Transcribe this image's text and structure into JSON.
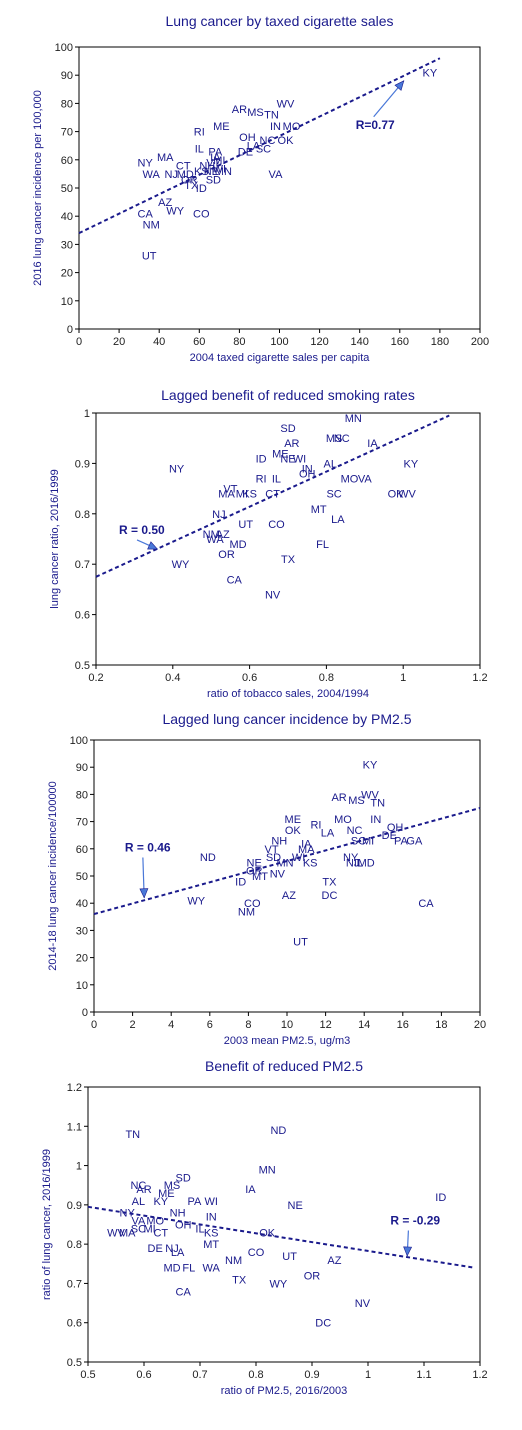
{
  "chart_data": [
    {
      "type": "scatter",
      "title": "Lung cancer by taxed cigarette sales",
      "xlabel": "2004 taxed cigarette sales per capita",
      "ylabel": "2016 lung cancer incidence per 100,000",
      "xlim": [
        0,
        200
      ],
      "ylim": [
        0,
        100
      ],
      "xticks": [
        "0",
        "20",
        "40",
        "60",
        "80",
        "100",
        "120",
        "140",
        "160",
        "180",
        "200"
      ],
      "yticks": [
        "0",
        "10",
        "20",
        "30",
        "40",
        "50",
        "60",
        "70",
        "80",
        "90",
        "100"
      ],
      "grid": false,
      "annotation": {
        "text": "R=0.77",
        "x": 138,
        "y": 71,
        "arrow_to": [
          162,
          88
        ]
      },
      "trendline": [
        [
          0,
          34
        ],
        [
          180,
          96
        ]
      ],
      "points": [
        {
          "label": "KY",
          "x": 175,
          "y": 91
        },
        {
          "label": "WV",
          "x": 103,
          "y": 80
        },
        {
          "label": "AR",
          "x": 80,
          "y": 78
        },
        {
          "label": "MS",
          "x": 88,
          "y": 77
        },
        {
          "label": "TN",
          "x": 96,
          "y": 76
        },
        {
          "label": "IN",
          "x": 98,
          "y": 72
        },
        {
          "label": "MO",
          "x": 106,
          "y": 72
        },
        {
          "label": "ME",
          "x": 71,
          "y": 72
        },
        {
          "label": "RI",
          "x": 60,
          "y": 70
        },
        {
          "label": "OH",
          "x": 84,
          "y": 68
        },
        {
          "label": "NC",
          "x": 94,
          "y": 67
        },
        {
          "label": "OK",
          "x": 103,
          "y": 67
        },
        {
          "label": "LA",
          "x": 87,
          "y": 65
        },
        {
          "label": "SC",
          "x": 92,
          "y": 64
        },
        {
          "label": "DE",
          "x": 83,
          "y": 63
        },
        {
          "label": "IL",
          "x": 60,
          "y": 64
        },
        {
          "label": "PA",
          "x": 68,
          "y": 63
        },
        {
          "label": "IA",
          "x": 68,
          "y": 61
        },
        {
          "label": "MI",
          "x": 70,
          "y": 60
        },
        {
          "label": "VT",
          "x": 67,
          "y": 59
        },
        {
          "label": "MA",
          "x": 43,
          "y": 61
        },
        {
          "label": "NY",
          "x": 33,
          "y": 59
        },
        {
          "label": "CT",
          "x": 52,
          "y": 58
        },
        {
          "label": "NH",
          "x": 64,
          "y": 58
        },
        {
          "label": "WI",
          "x": 70,
          "y": 57
        },
        {
          "label": "KS",
          "x": 61,
          "y": 56
        },
        {
          "label": "NE",
          "x": 66,
          "y": 56
        },
        {
          "label": "MN",
          "x": 72,
          "y": 56
        },
        {
          "label": "WA",
          "x": 36,
          "y": 55
        },
        {
          "label": "NJ",
          "x": 46,
          "y": 55
        },
        {
          "label": "MD",
          "x": 53,
          "y": 55
        },
        {
          "label": "VA",
          "x": 98,
          "y": 55
        },
        {
          "label": "OR",
          "x": 55,
          "y": 53
        },
        {
          "label": "SD",
          "x": 67,
          "y": 53
        },
        {
          "label": "TX",
          "x": 56,
          "y": 51
        },
        {
          "label": "ID",
          "x": 61,
          "y": 50
        },
        {
          "label": "AZ",
          "x": 43,
          "y": 45
        },
        {
          "label": "CA",
          "x": 33,
          "y": 41
        },
        {
          "label": "WY",
          "x": 48,
          "y": 42
        },
        {
          "label": "CO",
          "x": 61,
          "y": 41
        },
        {
          "label": "NM",
          "x": 36,
          "y": 37
        },
        {
          "label": "UT",
          "x": 35,
          "y": 26
        }
      ]
    },
    {
      "type": "scatter",
      "title": "Lagged benefit of reduced smoking rates",
      "xlabel": "ratio of tobacco sales, 2004/1994",
      "ylabel": "lung cancer ratio, 2016/1999",
      "xlim": [
        0.2,
        1.2
      ],
      "ylim": [
        0.5,
        1.0
      ],
      "xticks": [
        "0.2",
        "0.4",
        "0.6",
        "0.8",
        "1",
        "1.2"
      ],
      "yticks": [
        "0.5",
        "0.6",
        "0.7",
        "0.8",
        "0.9",
        "1"
      ],
      "grid": false,
      "annotation": {
        "text": "R = 0.50",
        "x": 0.26,
        "y": 0.76,
        "arrow_to": [
          0.36,
          0.73
        ]
      },
      "trendline": [
        [
          0.2,
          0.675
        ],
        [
          1.12,
          0.995
        ]
      ],
      "points": [
        {
          "label": "MN",
          "x": 0.87,
          "y": 0.99
        },
        {
          "label": "SD",
          "x": 0.7,
          "y": 0.97
        },
        {
          "label": "NC",
          "x": 0.84,
          "y": 0.95
        },
        {
          "label": "IA",
          "x": 0.92,
          "y": 0.94
        },
        {
          "label": "MS",
          "x": 0.82,
          "y": 0.95
        },
        {
          "label": "AR",
          "x": 0.71,
          "y": 0.94
        },
        {
          "label": "ME",
          "x": 0.68,
          "y": 0.92
        },
        {
          "label": "ID",
          "x": 0.63,
          "y": 0.91
        },
        {
          "label": "NE",
          "x": 0.7,
          "y": 0.91
        },
        {
          "label": "WI",
          "x": 0.73,
          "y": 0.91
        },
        {
          "label": "AL",
          "x": 0.81,
          "y": 0.9
        },
        {
          "label": "KY",
          "x": 1.02,
          "y": 0.9
        },
        {
          "label": "NY",
          "x": 0.41,
          "y": 0.89
        },
        {
          "label": "IN",
          "x": 0.75,
          "y": 0.89
        },
        {
          "label": "OH",
          "x": 0.75,
          "y": 0.88
        },
        {
          "label": "MO",
          "x": 0.86,
          "y": 0.87
        },
        {
          "label": "VA",
          "x": 0.9,
          "y": 0.87
        },
        {
          "label": "RI",
          "x": 0.63,
          "y": 0.87
        },
        {
          "label": "IL",
          "x": 0.67,
          "y": 0.87
        },
        {
          "label": "VT",
          "x": 0.55,
          "y": 0.85
        },
        {
          "label": "MI",
          "x": 0.58,
          "y": 0.84
        },
        {
          "label": "MA",
          "x": 0.54,
          "y": 0.84
        },
        {
          "label": "KS",
          "x": 0.6,
          "y": 0.84
        },
        {
          "label": "CT",
          "x": 0.66,
          "y": 0.84
        },
        {
          "label": "SC",
          "x": 0.82,
          "y": 0.84
        },
        {
          "label": "OK",
          "x": 0.98,
          "y": 0.84
        },
        {
          "label": "WV",
          "x": 1.01,
          "y": 0.84
        },
        {
          "label": "MT",
          "x": 0.78,
          "y": 0.81
        },
        {
          "label": "NJ",
          "x": 0.52,
          "y": 0.8
        },
        {
          "label": "UT",
          "x": 0.59,
          "y": 0.78
        },
        {
          "label": "CO",
          "x": 0.67,
          "y": 0.78
        },
        {
          "label": "LA",
          "x": 0.83,
          "y": 0.79
        },
        {
          "label": "NM",
          "x": 0.5,
          "y": 0.76
        },
        {
          "label": "AZ",
          "x": 0.53,
          "y": 0.76
        },
        {
          "label": "WA",
          "x": 0.51,
          "y": 0.75
        },
        {
          "label": "MD",
          "x": 0.57,
          "y": 0.74
        },
        {
          "label": "FL",
          "x": 0.79,
          "y": 0.74
        },
        {
          "label": "OR",
          "x": 0.54,
          "y": 0.72
        },
        {
          "label": "TX",
          "x": 0.7,
          "y": 0.71
        },
        {
          "label": "WY",
          "x": 0.42,
          "y": 0.7
        },
        {
          "label": "CA",
          "x": 0.56,
          "y": 0.67
        },
        {
          "label": "NV",
          "x": 0.66,
          "y": 0.64
        }
      ]
    },
    {
      "type": "scatter",
      "title": "Lagged lung cancer incidence by PM2.5",
      "xlabel": "2003 mean PM2.5, ug/m3",
      "ylabel": "2014-18 lung cancer incidence/100000",
      "xlim": [
        0,
        20
      ],
      "ylim": [
        0,
        100
      ],
      "xticks": [
        "0",
        "2",
        "4",
        "6",
        "8",
        "10",
        "12",
        "14",
        "16",
        "18",
        "20"
      ],
      "yticks": [
        "0",
        "10",
        "20",
        "30",
        "40",
        "50",
        "60",
        "70",
        "80",
        "90",
        "100"
      ],
      "grid": false,
      "annotation": {
        "text": "R = 0.46",
        "x": 1.6,
        "y": 59,
        "arrow_to": [
          2.6,
          42
        ]
      },
      "trendline": [
        [
          0,
          36
        ],
        [
          20,
          75
        ]
      ],
      "points": [
        {
          "label": "KY",
          "x": 14.3,
          "y": 91
        },
        {
          "label": "WV",
          "x": 14.3,
          "y": 80
        },
        {
          "label": "AR",
          "x": 12.7,
          "y": 79
        },
        {
          "label": "MS",
          "x": 13.6,
          "y": 78
        },
        {
          "label": "TN",
          "x": 14.7,
          "y": 77
        },
        {
          "label": "ME",
          "x": 10.3,
          "y": 71
        },
        {
          "label": "MO",
          "x": 12.9,
          "y": 71
        },
        {
          "label": "IN",
          "x": 14.6,
          "y": 71
        },
        {
          "label": "RI",
          "x": 11.5,
          "y": 69
        },
        {
          "label": "OH",
          "x": 15.6,
          "y": 68
        },
        {
          "label": "OK",
          "x": 10.3,
          "y": 67
        },
        {
          "label": "LA",
          "x": 12.1,
          "y": 66
        },
        {
          "label": "NC",
          "x": 13.5,
          "y": 67
        },
        {
          "label": "DE",
          "x": 15.3,
          "y": 65
        },
        {
          "label": "SC",
          "x": 13.7,
          "y": 63
        },
        {
          "label": "MI",
          "x": 14.2,
          "y": 63
        },
        {
          "label": "PA",
          "x": 15.9,
          "y": 63
        },
        {
          "label": "GA",
          "x": 16.6,
          "y": 63
        },
        {
          "label": "NH",
          "x": 9.6,
          "y": 63
        },
        {
          "label": "IA",
          "x": 11,
          "y": 62
        },
        {
          "label": "VT",
          "x": 9.2,
          "y": 60
        },
        {
          "label": "MA",
          "x": 11,
          "y": 60
        },
        {
          "label": "ND",
          "x": 5.9,
          "y": 57
        },
        {
          "label": "SD",
          "x": 9.3,
          "y": 57
        },
        {
          "label": "WI",
          "x": 10.6,
          "y": 57
        },
        {
          "label": "NY",
          "x": 13.3,
          "y": 57
        },
        {
          "label": "NE",
          "x": 8.3,
          "y": 55
        },
        {
          "label": "MN",
          "x": 9.9,
          "y": 55
        },
        {
          "label": "KS",
          "x": 11.2,
          "y": 55
        },
        {
          "label": "IL",
          "x": 13.7,
          "y": 55
        },
        {
          "label": "NJ",
          "x": 13.4,
          "y": 55
        },
        {
          "label": "MD",
          "x": 14.1,
          "y": 55
        },
        {
          "label": "OR",
          "x": 8.3,
          "y": 52
        },
        {
          "label": "MT",
          "x": 8.6,
          "y": 50
        },
        {
          "label": "NV",
          "x": 9.5,
          "y": 51
        },
        {
          "label": "ID",
          "x": 7.6,
          "y": 48
        },
        {
          "label": "TX",
          "x": 12.2,
          "y": 48
        },
        {
          "label": "WY",
          "x": 5.3,
          "y": 41
        },
        {
          "label": "AZ",
          "x": 10.1,
          "y": 43
        },
        {
          "label": "DC",
          "x": 12.2,
          "y": 43
        },
        {
          "label": "CO",
          "x": 8.2,
          "y": 40
        },
        {
          "label": "CA",
          "x": 17.2,
          "y": 40
        },
        {
          "label": "NM",
          "x": 7.9,
          "y": 37
        },
        {
          "label": "UT",
          "x": 10.7,
          "y": 26
        }
      ]
    },
    {
      "type": "scatter",
      "title": "Benefit of reduced PM2.5",
      "xlabel": "ratio of PM2.5, 2016/2003",
      "ylabel": "ratio of lung cancer, 2016/1999",
      "xlim": [
        0.5,
        1.2
      ],
      "ylim": [
        0.5,
        1.2
      ],
      "xticks": [
        "0.5",
        "0.6",
        "0.7",
        "0.8",
        "0.9",
        "1",
        "1.1",
        "1.2"
      ],
      "yticks": [
        "0.5",
        "0.6",
        "0.7",
        "0.8",
        "0.9",
        "1",
        "1.1",
        "1.2"
      ],
      "grid": false,
      "annotation": {
        "text": "R = -0.29",
        "x": 1.04,
        "y": 0.85,
        "arrow_to": [
          1.07,
          0.77
        ]
      },
      "trendline": [
        [
          0.5,
          0.895
        ],
        [
          1.19,
          0.74
        ]
      ],
      "points": [
        {
          "label": "TN",
          "x": 0.58,
          "y": 1.08
        },
        {
          "label": "ND",
          "x": 0.84,
          "y": 1.09
        },
        {
          "label": "MN",
          "x": 0.82,
          "y": 0.99
        },
        {
          "label": "SD",
          "x": 0.67,
          "y": 0.97
        },
        {
          "label": "NC",
          "x": 0.59,
          "y": 0.95
        },
        {
          "label": "AR",
          "x": 0.6,
          "y": 0.94
        },
        {
          "label": "MS",
          "x": 0.65,
          "y": 0.95
        },
        {
          "label": "IA",
          "x": 0.79,
          "y": 0.94
        },
        {
          "label": "ME",
          "x": 0.64,
          "y": 0.93
        },
        {
          "label": "ID",
          "x": 1.13,
          "y": 0.92
        },
        {
          "label": "KY",
          "x": 0.63,
          "y": 0.91
        },
        {
          "label": "AL",
          "x": 0.59,
          "y": 0.91
        },
        {
          "label": "PA",
          "x": 0.69,
          "y": 0.91
        },
        {
          "label": "WI",
          "x": 0.72,
          "y": 0.91
        },
        {
          "label": "NE",
          "x": 0.87,
          "y": 0.9
        },
        {
          "label": "NY",
          "x": 0.57,
          "y": 0.88
        },
        {
          "label": "NH",
          "x": 0.66,
          "y": 0.88
        },
        {
          "label": "IN",
          "x": 0.72,
          "y": 0.87
        },
        {
          "label": "VA",
          "x": 0.59,
          "y": 0.86
        },
        {
          "label": "MO",
          "x": 0.62,
          "y": 0.86
        },
        {
          "label": "OH",
          "x": 0.67,
          "y": 0.85
        },
        {
          "label": "IL",
          "x": 0.7,
          "y": 0.84
        },
        {
          "label": "SC",
          "x": 0.59,
          "y": 0.84
        },
        {
          "label": "MI",
          "x": 0.61,
          "y": 0.84
        },
        {
          "label": "OK",
          "x": 0.82,
          "y": 0.83
        },
        {
          "label": "KS",
          "x": 0.72,
          "y": 0.83
        },
        {
          "label": "CT",
          "x": 0.63,
          "y": 0.83
        },
        {
          "label": "WV",
          "x": 0.55,
          "y": 0.83
        },
        {
          "label": "MA",
          "x": 0.57,
          "y": 0.83
        },
        {
          "label": "MT",
          "x": 0.72,
          "y": 0.8
        },
        {
          "label": "DE",
          "x": 0.62,
          "y": 0.79
        },
        {
          "label": "NJ",
          "x": 0.65,
          "y": 0.79
        },
        {
          "label": "LA",
          "x": 0.66,
          "y": 0.78
        },
        {
          "label": "CO",
          "x": 0.8,
          "y": 0.78
        },
        {
          "label": "UT",
          "x": 0.86,
          "y": 0.77
        },
        {
          "label": "NM",
          "x": 0.76,
          "y": 0.76
        },
        {
          "label": "AZ",
          "x": 0.94,
          "y": 0.76
        },
        {
          "label": "MD",
          "x": 0.65,
          "y": 0.74
        },
        {
          "label": "FL",
          "x": 0.68,
          "y": 0.74
        },
        {
          "label": "WA",
          "x": 0.72,
          "y": 0.74
        },
        {
          "label": "OR",
          "x": 0.9,
          "y": 0.72
        },
        {
          "label": "TX",
          "x": 0.77,
          "y": 0.71
        },
        {
          "label": "WY",
          "x": 0.84,
          "y": 0.7
        },
        {
          "label": "CA",
          "x": 0.67,
          "y": 0.68
        },
        {
          "label": "NV",
          "x": 0.99,
          "y": 0.65
        },
        {
          "label": "DC",
          "x": 0.92,
          "y": 0.6
        }
      ]
    }
  ],
  "colors": {
    "title": "#1a1a8c",
    "point_label": "#1a1a8c",
    "axis": "#000000",
    "trendline": "#1a1a8c",
    "arrow": "#4a78d8"
  }
}
